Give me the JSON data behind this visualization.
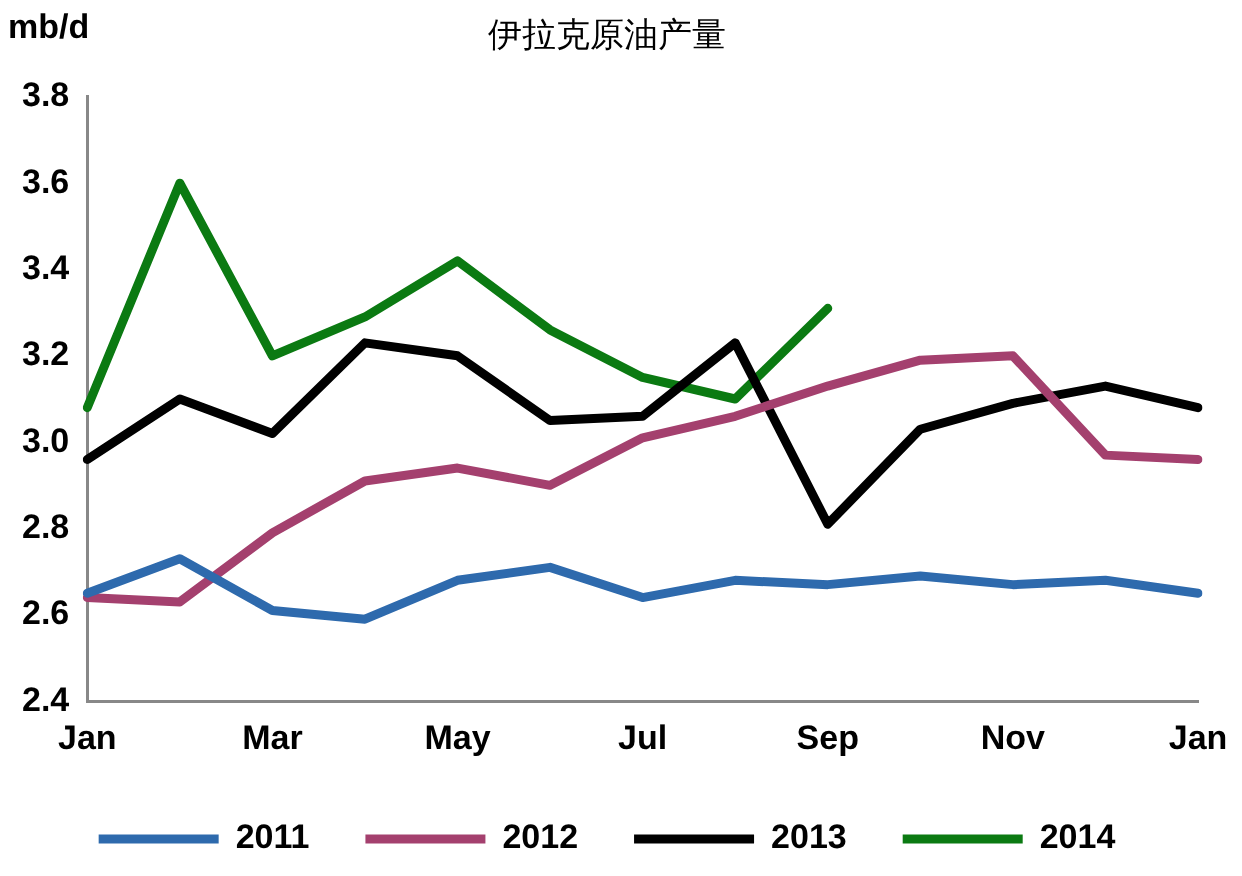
{
  "chart_data": {
    "type": "line",
    "title": "伊拉克原油产量",
    "ylabel": "mb/d",
    "categories": [
      "Jan",
      null,
      "Mar",
      null,
      "May",
      null,
      "Jul",
      null,
      "Sep",
      null,
      "Nov",
      null,
      "Jan"
    ],
    "series": [
      {
        "name": "2011",
        "color": "#2e6aad",
        "values": [
          2.65,
          2.73,
          2.61,
          2.59,
          2.68,
          2.71,
          2.64,
          2.68,
          2.67,
          2.69,
          2.67,
          2.68,
          2.65
        ]
      },
      {
        "name": "2012",
        "color": "#a4406e",
        "values": [
          2.64,
          2.63,
          2.79,
          2.91,
          2.94,
          2.9,
          3.01,
          3.06,
          3.13,
          3.19,
          3.2,
          2.97,
          2.96
        ]
      },
      {
        "name": "2013",
        "color": "#000000",
        "values": [
          2.96,
          3.1,
          3.02,
          3.23,
          3.2,
          3.05,
          3.06,
          3.23,
          2.81,
          3.03,
          3.09,
          3.13,
          3.08
        ]
      },
      {
        "name": "2014",
        "color": "#0b7a12",
        "values": [
          3.08,
          3.6,
          3.2,
          3.29,
          3.42,
          3.26,
          3.15,
          3.1,
          3.31,
          null,
          null,
          null,
          null
        ]
      }
    ],
    "ylim": [
      2.4,
      3.8
    ],
    "yticks": [
      {
        "value": 2.4,
        "label": "2.4"
      },
      {
        "value": 2.6,
        "label": "2.6"
      },
      {
        "value": 2.8,
        "label": "2.8"
      },
      {
        "value": 3,
        "label": "3.0"
      },
      {
        "value": 3.2,
        "label": "3.2"
      },
      {
        "value": 3.4,
        "label": "3.4"
      },
      {
        "value": 3.6,
        "label": "3.6"
      },
      {
        "value": 3.8,
        "label": "3.8"
      }
    ],
    "grid": false,
    "legend": "bottom",
    "marker": "none",
    "line_style": "solid"
  }
}
